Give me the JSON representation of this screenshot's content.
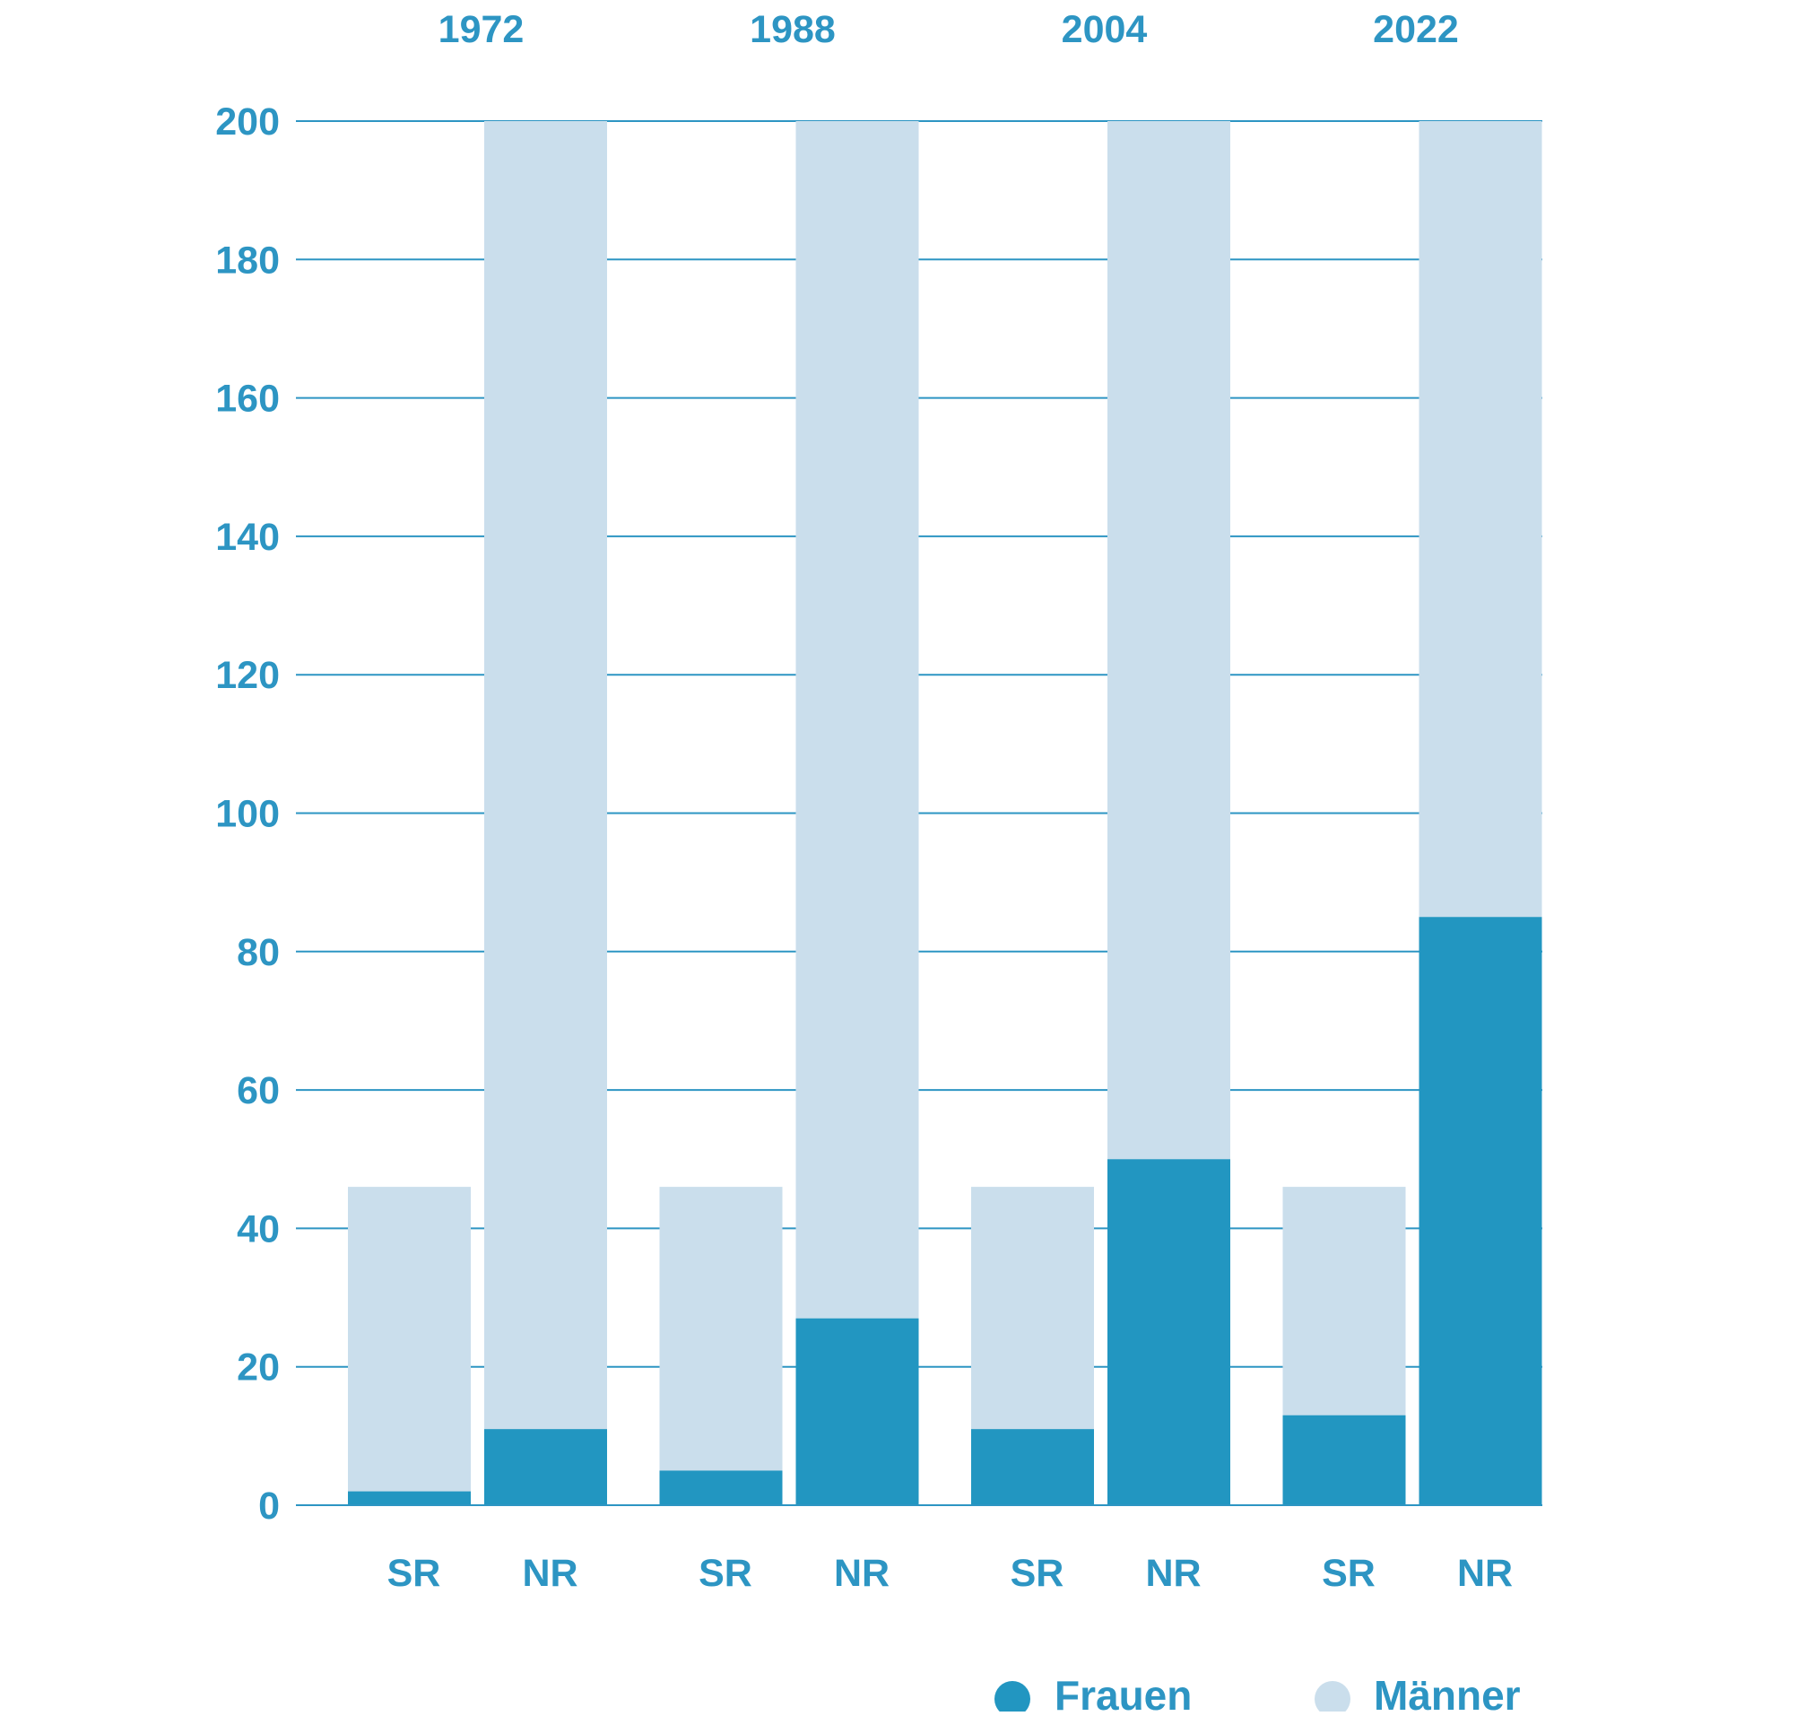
{
  "colors": {
    "frauen": "#2296c1",
    "maenner": "#cadeec",
    "text": "#2d95c3",
    "grid": "#2d95c3",
    "background": "#ffffff"
  },
  "legend": {
    "frauen_label": "Frauen",
    "maenner_label": "Männer",
    "placement": "bottom-right"
  },
  "chart_data": {
    "type": "bar",
    "stacked": true,
    "groups": [
      "1972",
      "1988",
      "2004",
      "2022"
    ],
    "categories": [
      "SR",
      "NR"
    ],
    "series": [
      {
        "name": "Frauen",
        "color_key": "frauen",
        "values": [
          [
            2,
            11
          ],
          [
            5,
            27
          ],
          [
            11,
            50
          ],
          [
            13,
            85
          ]
        ]
      },
      {
        "name": "Männer",
        "color_key": "maenner",
        "values": [
          [
            44,
            189
          ],
          [
            41,
            173
          ],
          [
            35,
            150
          ],
          [
            33,
            115
          ]
        ]
      }
    ],
    "totals": [
      [
        46,
        200
      ],
      [
        46,
        200
      ],
      [
        46,
        200
      ],
      [
        46,
        200
      ]
    ],
    "ylim": [
      0,
      200
    ],
    "yticks": [
      0,
      20,
      40,
      60,
      80,
      100,
      120,
      140,
      160,
      180,
      200
    ],
    "grid": true,
    "title": "",
    "xlabel": "",
    "ylabel": ""
  }
}
